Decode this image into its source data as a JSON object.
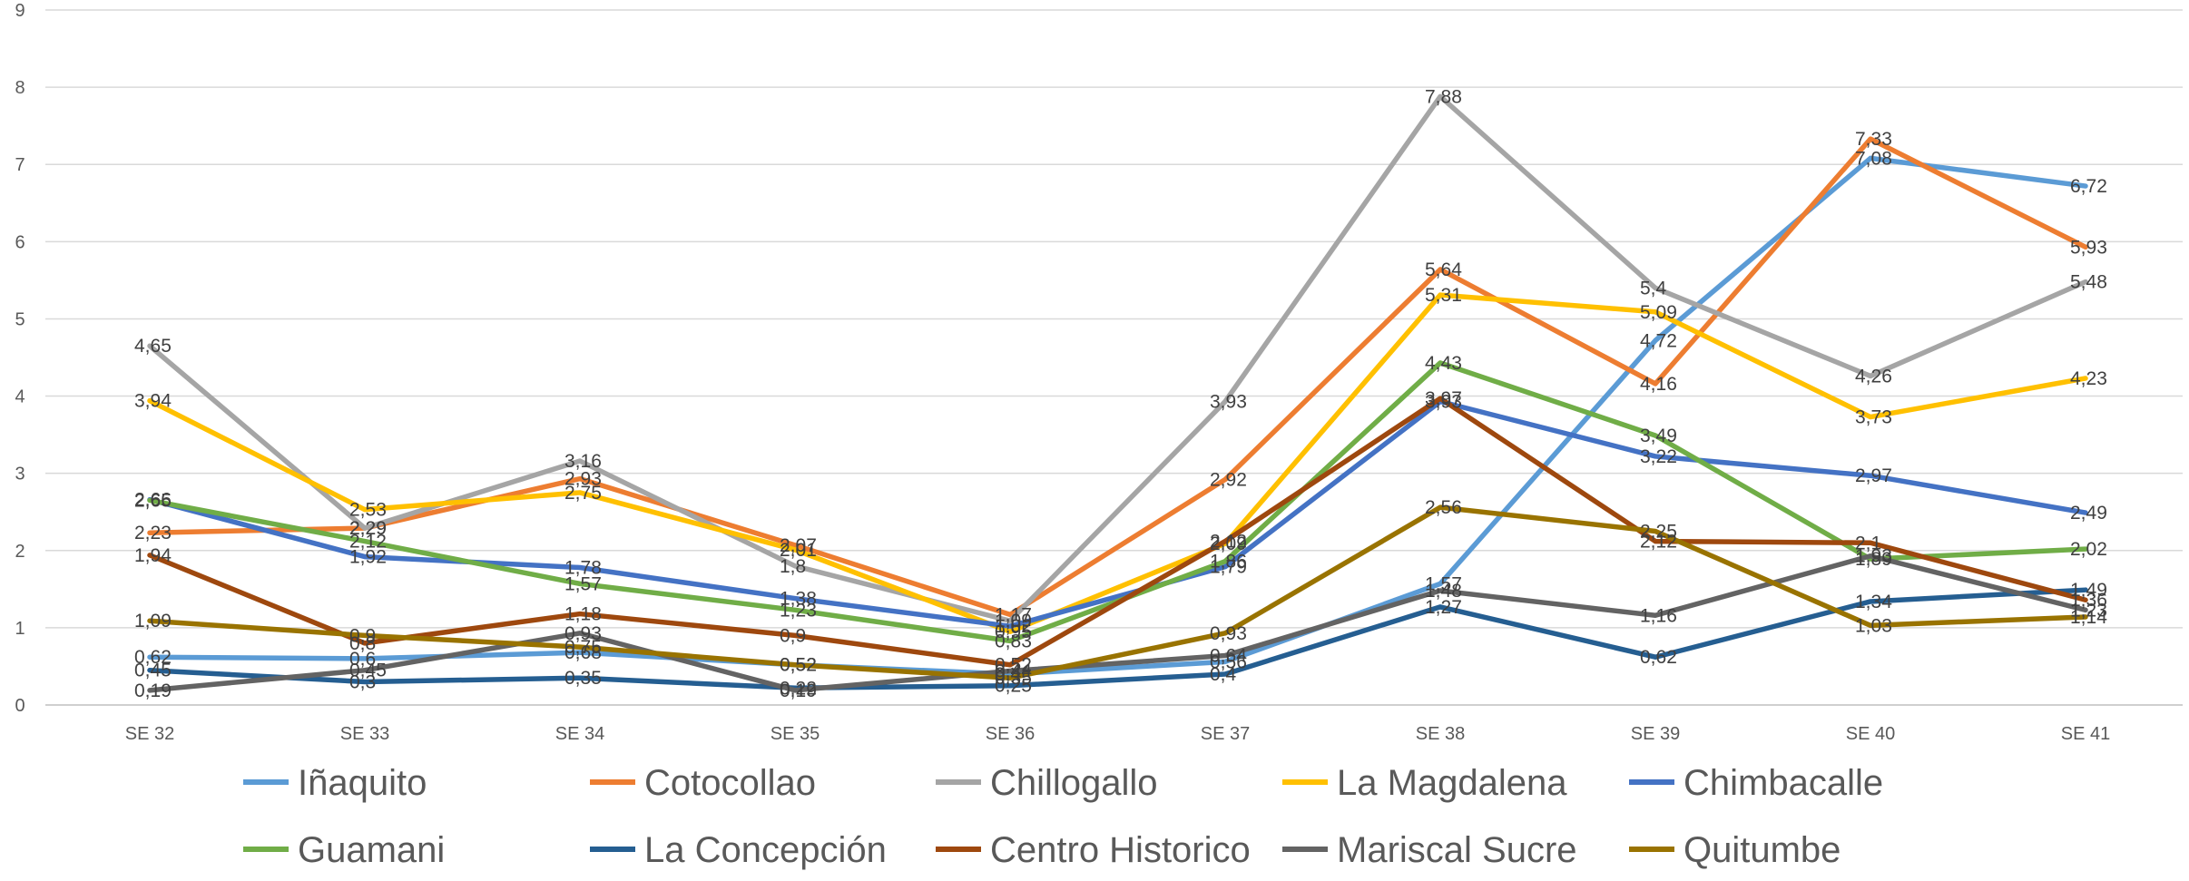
{
  "chart_data": {
    "type": "line",
    "title": "",
    "xlabel": "",
    "ylabel": "",
    "categories": [
      "SE 32",
      "SE 33",
      "SE 34",
      "SE 35",
      "SE 36",
      "SE 37",
      "SE 38",
      "SE 39",
      "SE 40",
      "SE 41"
    ],
    "y_ticks": [
      "0",
      "1",
      "2",
      "3",
      "4",
      "5",
      "6",
      "7",
      "8",
      "9"
    ],
    "ylim": [
      0,
      9
    ],
    "grid": true,
    "legend_position": "bottom",
    "series": [
      {
        "name": "Iñaquito",
        "color": "#5B9BD5",
        "values": [
          0.62,
          0.6,
          0.68,
          0.52,
          0.4,
          0.56,
          1.57,
          4.72,
          7.08,
          6.72
        ],
        "labels": [
          "0,62",
          "0,6",
          "0,68",
          "0,52",
          "0,4",
          "0,56",
          "1,57",
          "4,72",
          "7,08",
          "6,72"
        ]
      },
      {
        "name": "Cotocollao",
        "color": "#ED7D31",
        "values": [
          2.23,
          2.29,
          2.93,
          2.07,
          1.17,
          2.92,
          5.64,
          4.16,
          7.33,
          5.93
        ],
        "labels": [
          "2,23",
          "2,29",
          "2,93",
          "2,07",
          "1,17",
          "2,92",
          "5,64",
          "4,16",
          "7,33",
          "5,93"
        ]
      },
      {
        "name": "Chillogallo",
        "color": "#A5A5A5",
        "values": [
          4.65,
          2.29,
          3.16,
          1.8,
          1.09,
          3.93,
          7.88,
          5.4,
          4.26,
          5.48
        ],
        "labels": [
          "4,65",
          "2,29",
          "3,16",
          "1,8",
          "1,09",
          "3,93",
          "7,88",
          "5,4",
          "4,26",
          "5,48"
        ]
      },
      {
        "name": "La Magdalena",
        "color": "#FFC000",
        "values": [
          3.94,
          2.53,
          2.75,
          2.01,
          0.95,
          2.09,
          5.31,
          5.09,
          3.73,
          4.23
        ],
        "labels": [
          "3,94",
          "2,53",
          "2,75",
          "2,01",
          "0,95",
          "2,09",
          "5,31",
          "5,09",
          "3,73",
          "4,23"
        ]
      },
      {
        "name": "Chimbacalle",
        "color": "#4472C4",
        "values": [
          2.66,
          1.92,
          1.78,
          1.38,
          1.02,
          1.79,
          3.93,
          3.22,
          2.97,
          2.49
        ],
        "labels": [
          "2,66",
          "1,92",
          "1,78",
          "1,38",
          "1,02",
          "1,79",
          "3,93",
          "3,22",
          "2,97",
          "2,49"
        ]
      },
      {
        "name": "Guamani",
        "color": "#70AD47",
        "values": [
          2.65,
          2.12,
          1.57,
          1.23,
          0.83,
          1.86,
          4.43,
          3.49,
          1.89,
          2.02
        ],
        "labels": [
          "2,65",
          "2,12",
          "1,57",
          "1,23",
          "0,83",
          "1,86",
          "4,43",
          "3,49",
          "1,89",
          "2,02"
        ]
      },
      {
        "name": "La Concepción",
        "color": "#255E91",
        "values": [
          0.45,
          0.3,
          0.35,
          0.22,
          0.25,
          0.4,
          1.27,
          0.62,
          1.34,
          1.49
        ],
        "labels": [
          "0,45",
          "0,3",
          "0,35",
          "0,22",
          "0,25",
          "0,4",
          "1,27",
          "0,62",
          "1,34",
          "1,49"
        ]
      },
      {
        "name": "Centro Historico",
        "color": "#9E480E",
        "values": [
          1.94,
          0.8,
          1.18,
          0.9,
          0.52,
          2.12,
          3.97,
          2.12,
          2.1,
          1.36
        ],
        "labels": [
          "1,94",
          "0,8",
          "1,18",
          "0,9",
          "0,52",
          "2,12",
          "3,97",
          "2,12",
          "2,1",
          "1,36"
        ]
      },
      {
        "name": "Mariscal Sucre",
        "color": "#636363",
        "values": [
          0.19,
          0.45,
          0.93,
          0.19,
          0.44,
          0.64,
          1.48,
          1.16,
          1.93,
          1.23
        ],
        "labels": [
          "0,19",
          "0,45",
          "0,93",
          "0,19",
          "0,44",
          "0,64",
          "1,48",
          "1,16",
          "1,93",
          "1,23"
        ]
      },
      {
        "name": "Quitumbe",
        "color": "#997300",
        "values": [
          1.09,
          0.9,
          0.75,
          0.52,
          0.35,
          0.93,
          2.56,
          2.25,
          1.03,
          1.14
        ],
        "labels": [
          "1,09",
          "0,9",
          "0,75",
          "0,52",
          "0,35",
          "0,93",
          "2,56",
          "2,25",
          "1,03",
          "1,14"
        ]
      }
    ]
  }
}
